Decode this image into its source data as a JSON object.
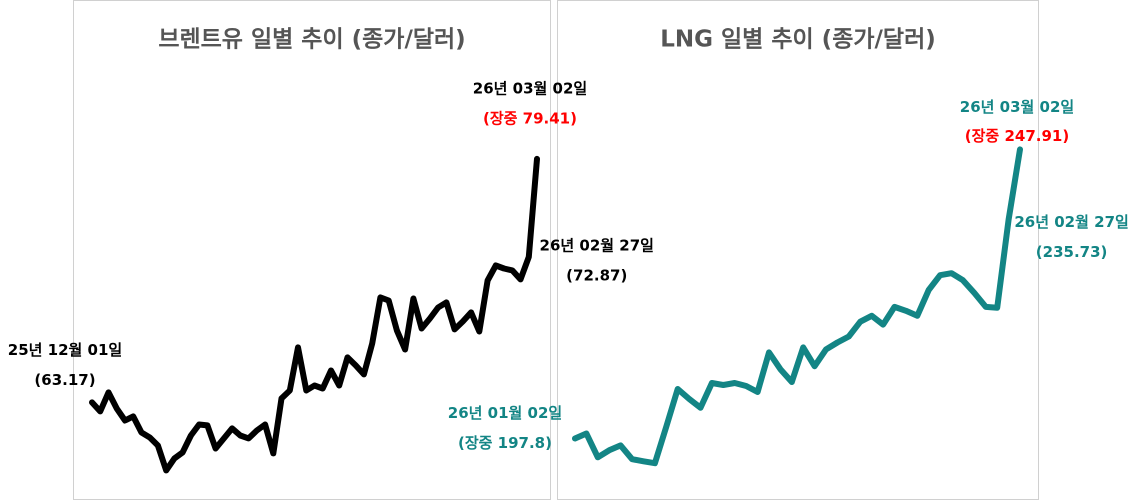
{
  "chart_data": [
    {
      "type": "line",
      "title": "브렌트유 일별 추이 (종가/달러)",
      "color": "#000000",
      "label_color": "#000000",
      "highlight_color": "#ff0000",
      "ylim": [
        57,
        82
      ],
      "categories": [
        "25년 12월 01일",
        null,
        null,
        null,
        null,
        null,
        null,
        null,
        null,
        null,
        null,
        null,
        null,
        null,
        null,
        null,
        null,
        null,
        null,
        null,
        null,
        null,
        null,
        null,
        null,
        null,
        null,
        null,
        null,
        null,
        null,
        null,
        null,
        null,
        null,
        null,
        null,
        null,
        null,
        null,
        null,
        null,
        null,
        null,
        null,
        null,
        null,
        null,
        null,
        null,
        null,
        null,
        null,
        "26년 02월 27일",
        "26년 03월 02일"
      ],
      "values": [
        63.17,
        62.57,
        63.84,
        62.77,
        61.97,
        62.24,
        61.17,
        60.84,
        60.3,
        58.64,
        59.44,
        59.84,
        60.97,
        61.7,
        61.64,
        60.1,
        60.77,
        61.44,
        60.97,
        60.77,
        61.3,
        61.7,
        59.77,
        63.44,
        63.97,
        66.84,
        63.97,
        64.3,
        64.1,
        65.3,
        64.3,
        66.17,
        65.64,
        65.04,
        67.1,
        70.17,
        69.97,
        67.97,
        66.7,
        70.1,
        68.1,
        68.77,
        69.5,
        69.84,
        68.04,
        68.57,
        69.17,
        67.9,
        71.3,
        72.3,
        72.1,
        71.97,
        71.37,
        72.87,
        79.41
      ],
      "value_labels": [
        "(63.17)",
        null,
        null,
        null,
        null,
        null,
        null,
        null,
        null,
        null,
        null,
        null,
        null,
        null,
        null,
        null,
        null,
        null,
        null,
        null,
        null,
        null,
        null,
        null,
        null,
        null,
        null,
        null,
        null,
        null,
        null,
        null,
        null,
        null,
        null,
        null,
        null,
        null,
        null,
        null,
        null,
        null,
        null,
        null,
        null,
        null,
        null,
        null,
        null,
        null,
        null,
        null,
        null,
        "(72.87)",
        "(장중 79.41)"
      ]
    },
    {
      "type": "line",
      "title": "LNG 일별 추이 (종가/달러)",
      "color": "#138585",
      "label_color": "#138585",
      "highlight_color": "#ff0000",
      "ylim": [
        188,
        253
      ],
      "categories": [
        "26년 01월 02일",
        null,
        null,
        null,
        null,
        null,
        null,
        null,
        null,
        null,
        null,
        null,
        null,
        null,
        null,
        null,
        null,
        null,
        null,
        null,
        null,
        null,
        null,
        null,
        null,
        null,
        null,
        null,
        null,
        null,
        null,
        null,
        null,
        null,
        null,
        null,
        null,
        null,
        "26년 02월 27일",
        "26년 03월 02일"
      ],
      "values": [
        197.8,
        198.66,
        194.54,
        195.74,
        196.6,
        194.2,
        193.85,
        193.51,
        199.86,
        206.38,
        204.66,
        203.12,
        207.41,
        207.06,
        207.41,
        206.89,
        205.86,
        212.72,
        209.81,
        207.58,
        213.58,
        210.32,
        213.24,
        214.44,
        215.47,
        218.04,
        219.07,
        217.53,
        220.61,
        219.93,
        219.07,
        223.53,
        226.1,
        226.44,
        225.24,
        223.01,
        220.61,
        220.44,
        235.73,
        247.91
      ],
      "value_labels": [
        "(장중 197.8)",
        null,
        null,
        null,
        null,
        null,
        null,
        null,
        null,
        null,
        null,
        null,
        null,
        null,
        null,
        null,
        null,
        null,
        null,
        null,
        null,
        null,
        null,
        null,
        null,
        null,
        null,
        null,
        null,
        null,
        null,
        null,
        null,
        null,
        null,
        null,
        null,
        null,
        "(235.73)",
        "(장중 247.91)"
      ]
    }
  ]
}
